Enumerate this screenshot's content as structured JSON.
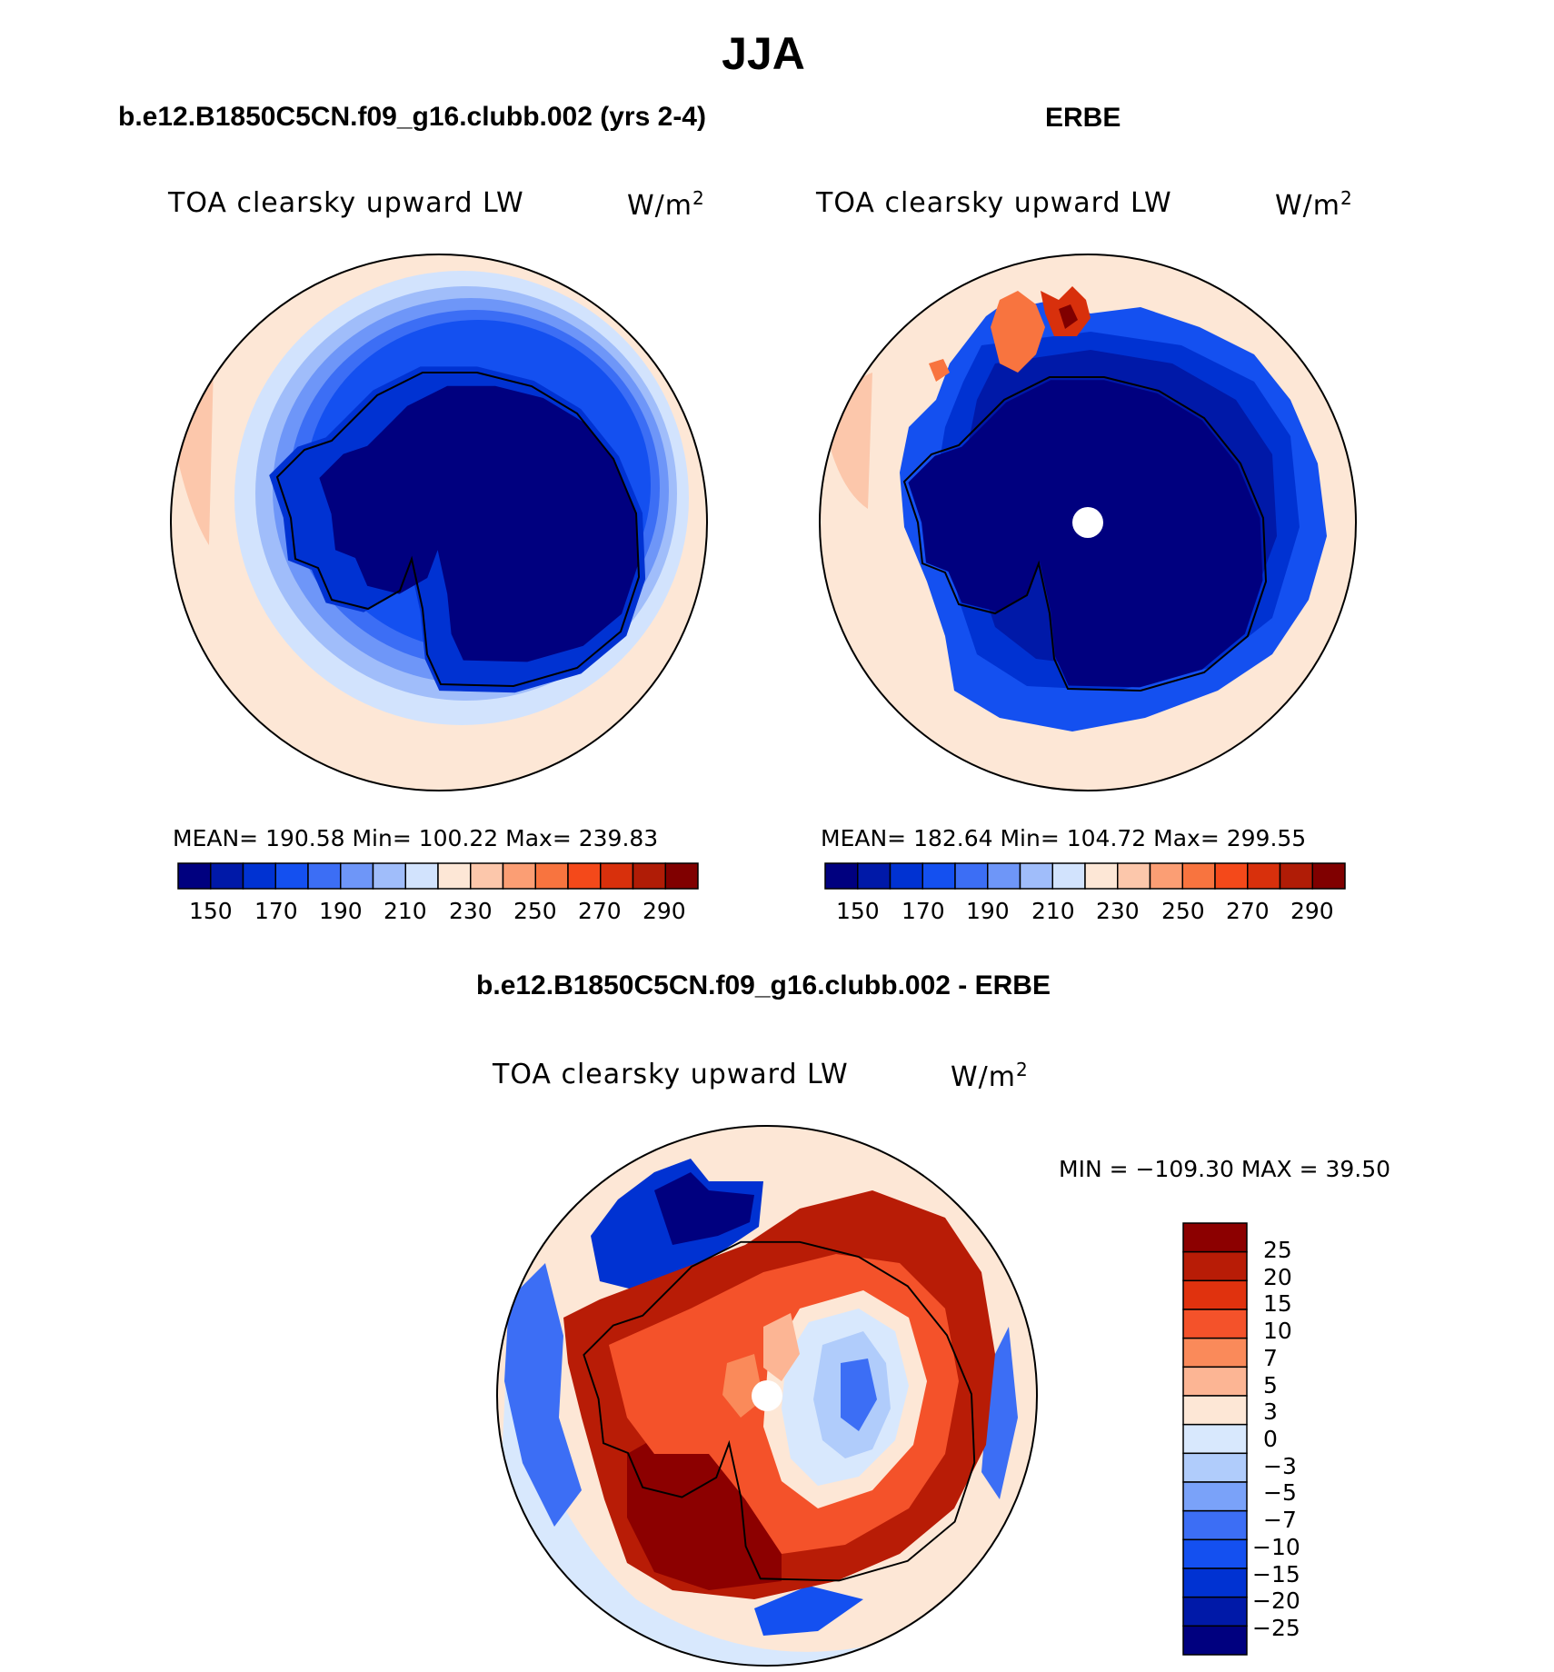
{
  "title": "JJA",
  "colors": {
    "cool": [
      "#00007f",
      "#0019a8",
      "#0032d2",
      "#1450f0",
      "#3c6ef5",
      "#6e96f8",
      "#a0bdfa",
      "#d2e3fd"
    ],
    "warm": [
      "#fde7d6",
      "#fcc7ab",
      "#fb9e74",
      "#f8743f",
      "#f4491a",
      "#d8300c",
      "#b01c06",
      "#800000"
    ],
    "diff": [
      "#00007f",
      "#0019a8",
      "#0032d2",
      "#1450f0",
      "#3c6ef5",
      "#7aa2f9",
      "#b0ccfb",
      "#d8e8fd",
      "#fde7d6",
      "#fcb594",
      "#fa8a5a",
      "#f4522a",
      "#e0320e",
      "#b81c06",
      "#8c0000"
    ],
    "land": "#000000"
  },
  "panels": [
    {
      "title": "b.e12.B1850C5CN.f09_g16.clubb.002 (yrs 2-4)",
      "variable_label": "TOA clearsky upward LW",
      "units_base": "W/m",
      "units_exp": "2",
      "stats": "MEAN= 190.58   Min= 100.22   Max= 239.83",
      "colorbar_ticks": [
        "150",
        "170",
        "190",
        "210",
        "230",
        "250",
        "270",
        "290"
      ]
    },
    {
      "title": "ERBE",
      "variable_label": "TOA clearsky upward LW",
      "units_base": "W/m",
      "units_exp": "2",
      "stats": "MEAN= 182.64   Min= 104.72   Max= 299.55",
      "colorbar_ticks": [
        "150",
        "170",
        "190",
        "210",
        "230",
        "250",
        "270",
        "290"
      ]
    }
  ],
  "difference": {
    "title": "b.e12.B1850C5CN.f09_g16.clubb.002 - ERBE",
    "variable_label": "TOA clearsky upward LW",
    "units_base": "W/m",
    "units_exp": "2",
    "minmax": "MIN = −109.30 MAX =   39.50",
    "colorbar_ticks": [
      "25",
      "20",
      "15",
      "10",
      "7",
      "5",
      "3",
      "0",
      "−3",
      "−5",
      "−7",
      "−10",
      "−15",
      "−20",
      "−25"
    ]
  }
}
